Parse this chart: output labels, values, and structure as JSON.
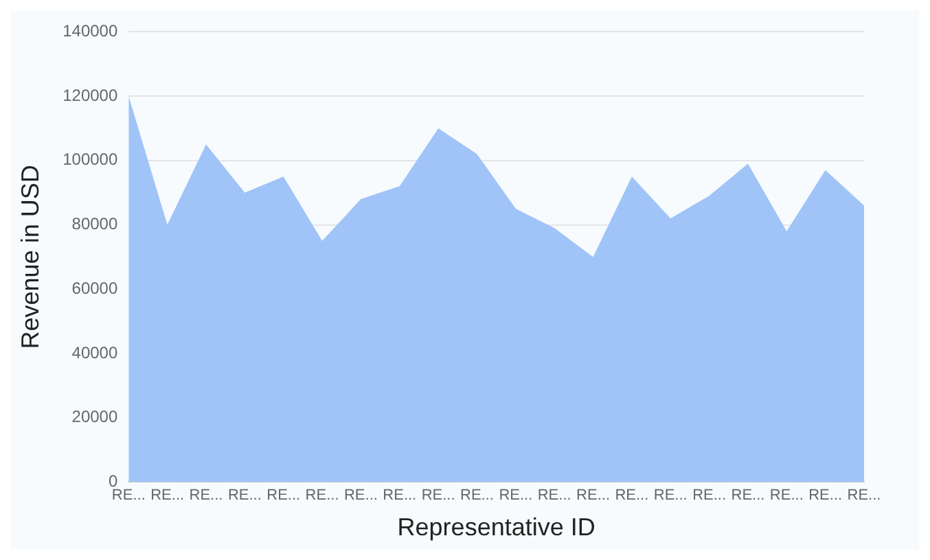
{
  "chart_data": {
    "type": "area",
    "xlabel": "Representative ID",
    "ylabel": "Revenue in USD",
    "categories": [
      "RE...",
      "RE...",
      "RE...",
      "RE...",
      "RE...",
      "RE...",
      "RE...",
      "RE...",
      "RE...",
      "RE...",
      "RE...",
      "RE...",
      "RE...",
      "RE...",
      "RE...",
      "RE...",
      "RE...",
      "RE...",
      "RE...",
      "RE..."
    ],
    "series": [
      {
        "color": "#a0c4f8",
        "values": [
          120000,
          80000,
          105000,
          90000,
          95000,
          75000,
          88000,
          92000,
          110000,
          102000,
          85000,
          79000,
          70000,
          95000,
          82000,
          89000,
          99000,
          78000,
          97000,
          86000
        ]
      }
    ],
    "ylim": [
      0,
      140000
    ],
    "yticks": [
      0,
      20000,
      40000,
      60000,
      80000,
      100000,
      120000,
      140000
    ],
    "grid": "y",
    "legend": false
  }
}
